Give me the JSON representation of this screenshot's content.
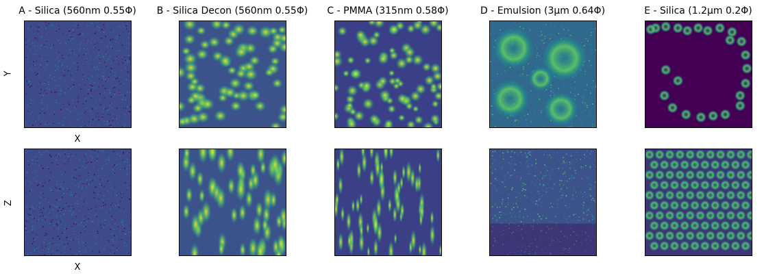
{
  "figure": {
    "titles": [
      "A - Silica (560nm 0.55Φ)",
      "B - Silica Decon (560nm 0.55Φ)",
      "C - PMMA (315nm 0.58Φ)",
      "D - Emulsion (3µm 0.64Φ)",
      "E - Silica (1.2µm 0.2Φ)"
    ],
    "row_labels": [
      "Y",
      "Z"
    ],
    "x_label": "X",
    "colormap_colors": {
      "dark": "#440154",
      "mid_dark": "#3b528b",
      "mid": "#21918c",
      "mid_light": "#5ec962",
      "bright": "#fde725"
    }
  }
}
